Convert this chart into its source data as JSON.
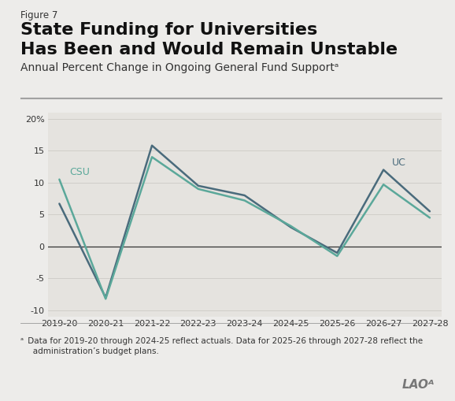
{
  "figure_label": "Figure 7",
  "title_line1": "State Funding for Universities",
  "title_line2": "Has Been and Would Remain Unstable",
  "subtitle": "Annual Percent Change in Ongoing General Fund Supportᵃ",
  "footnote_super": "ᵃ",
  "footnote_text": " Data for 2019-20 through 2024-25 reflect actuals. Data for 2025-26 through 2027-28 reflect the\n   administration’s budget plans.",
  "watermark": "LAOᴬ",
  "x_labels": [
    "2019-20",
    "2020-21",
    "2021-22",
    "2022-23",
    "2023-24",
    "2024-25",
    "2025-26",
    "2026-27",
    "2027-28"
  ],
  "uc_values": [
    6.7,
    -8.0,
    15.8,
    9.5,
    8.0,
    3.0,
    -1.0,
    12.0,
    5.5
  ],
  "csu_values": [
    10.5,
    -8.2,
    14.0,
    9.0,
    7.2,
    3.2,
    -1.5,
    9.7,
    4.5
  ],
  "uc_color": "#4a6b7c",
  "csu_color": "#5ba89a",
  "ylim": [
    -11,
    21
  ],
  "yticks": [
    -10,
    -5,
    0,
    5,
    10,
    15,
    20
  ],
  "bg_color": "#edecea",
  "plot_bg_color": "#e5e3df",
  "title_fontsize": 16,
  "subtitle_fontsize": 10,
  "tick_fontsize": 8,
  "label_fontsize": 9
}
